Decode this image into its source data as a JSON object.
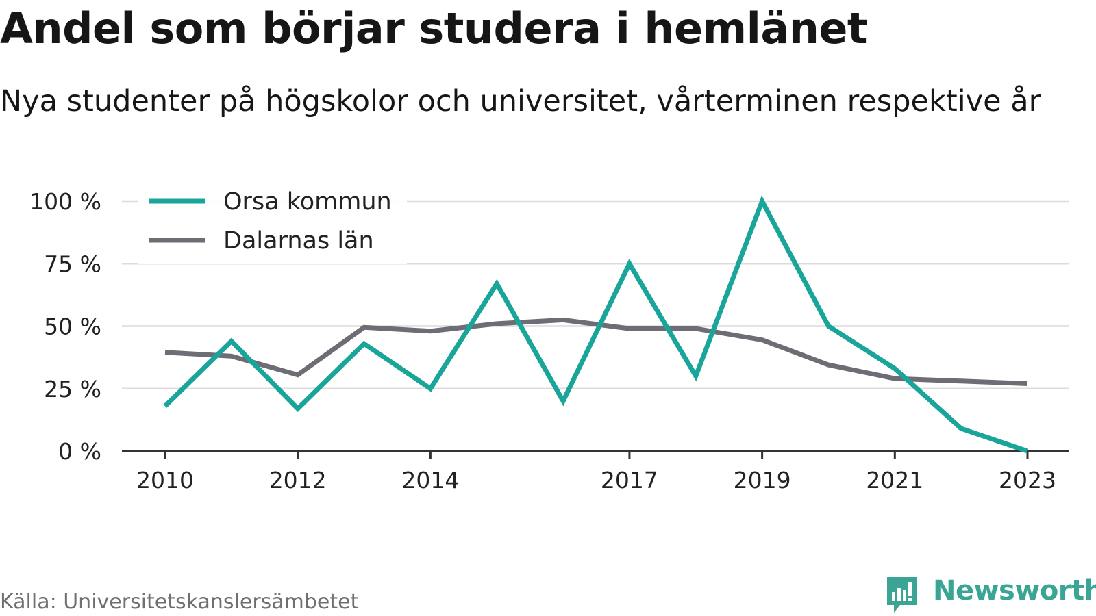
{
  "title": "Andel som börjar studera i hemlänet",
  "subtitle": "Nya studenter på högskolor och universitet, vårterminen respektive år",
  "source": "Källa: Universitetskanslersämbetet",
  "brand": {
    "name": "Newsworthy",
    "icon": "newsworthy-logo-icon",
    "color": "#3aa595"
  },
  "chart_data": {
    "type": "line",
    "x": [
      2010,
      2011,
      2012,
      2013,
      2014,
      2015,
      2016,
      2017,
      2018,
      2019,
      2020,
      2021,
      2022,
      2023
    ],
    "x_tick_labels": [
      "2010",
      "2012",
      "2014",
      "2017",
      "2019",
      "2021",
      "2023"
    ],
    "x_tick_values": [
      2010,
      2012,
      2014,
      2017,
      2019,
      2021,
      2023
    ],
    "y_tick_labels": [
      "0 %",
      "25 %",
      "50 %",
      "75 %",
      "100 %"
    ],
    "y_tick_values": [
      0,
      25,
      50,
      75,
      100
    ],
    "ylim": [
      0,
      100
    ],
    "grid": true,
    "legend_position": "top-left",
    "series": [
      {
        "name": "Orsa kommun",
        "color": "#1aa59a",
        "values": [
          18,
          44,
          17,
          43,
          25,
          67,
          20,
          75,
          30,
          100,
          50,
          33,
          9,
          0
        ]
      },
      {
        "name": "Dalarnas län",
        "color": "#6e6d75",
        "values": [
          39.5,
          38,
          30.5,
          49.5,
          48,
          51,
          52.5,
          49,
          49,
          44.5,
          34.5,
          29,
          28,
          27
        ]
      }
    ]
  }
}
